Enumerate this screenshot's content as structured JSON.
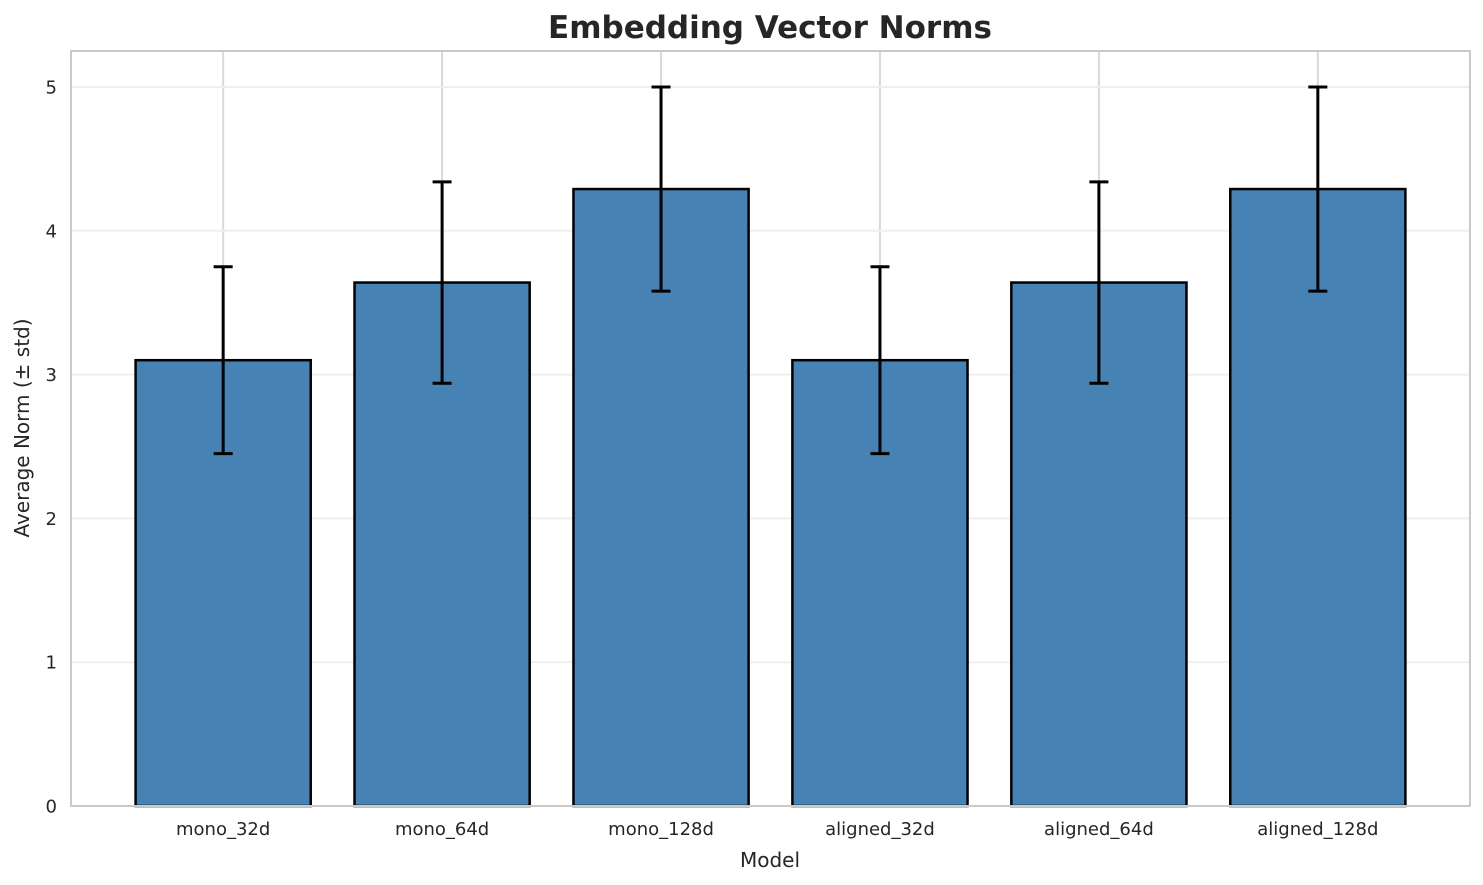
{
  "chart_data": {
    "type": "bar",
    "title": "Embedding Vector Norms",
    "xlabel": "Model",
    "ylabel": "Average Norm (± std)",
    "categories": [
      "mono_32d",
      "mono_64d",
      "mono_128d",
      "aligned_32d",
      "aligned_64d",
      "aligned_128d"
    ],
    "values": [
      3.1,
      3.64,
      4.29,
      3.1,
      3.64,
      4.29
    ],
    "errors": [
      0.65,
      0.7,
      0.71,
      0.65,
      0.7,
      0.71
    ],
    "yticks": [
      0,
      1,
      2,
      3,
      4,
      5
    ],
    "ylim": [
      0,
      5.25
    ],
    "grid": true,
    "legend_position": "none",
    "error_bar_style": "± std with caps",
    "colors": {
      "bar_fill": "#4682B4",
      "bar_edge": "#000000",
      "error_bar": "#000000",
      "grid_vertical": "#d9d9d9",
      "grid_horizontal": "#efefef",
      "spine": "#c9c9c9",
      "text": "#262626",
      "background": "#ffffff"
    }
  }
}
